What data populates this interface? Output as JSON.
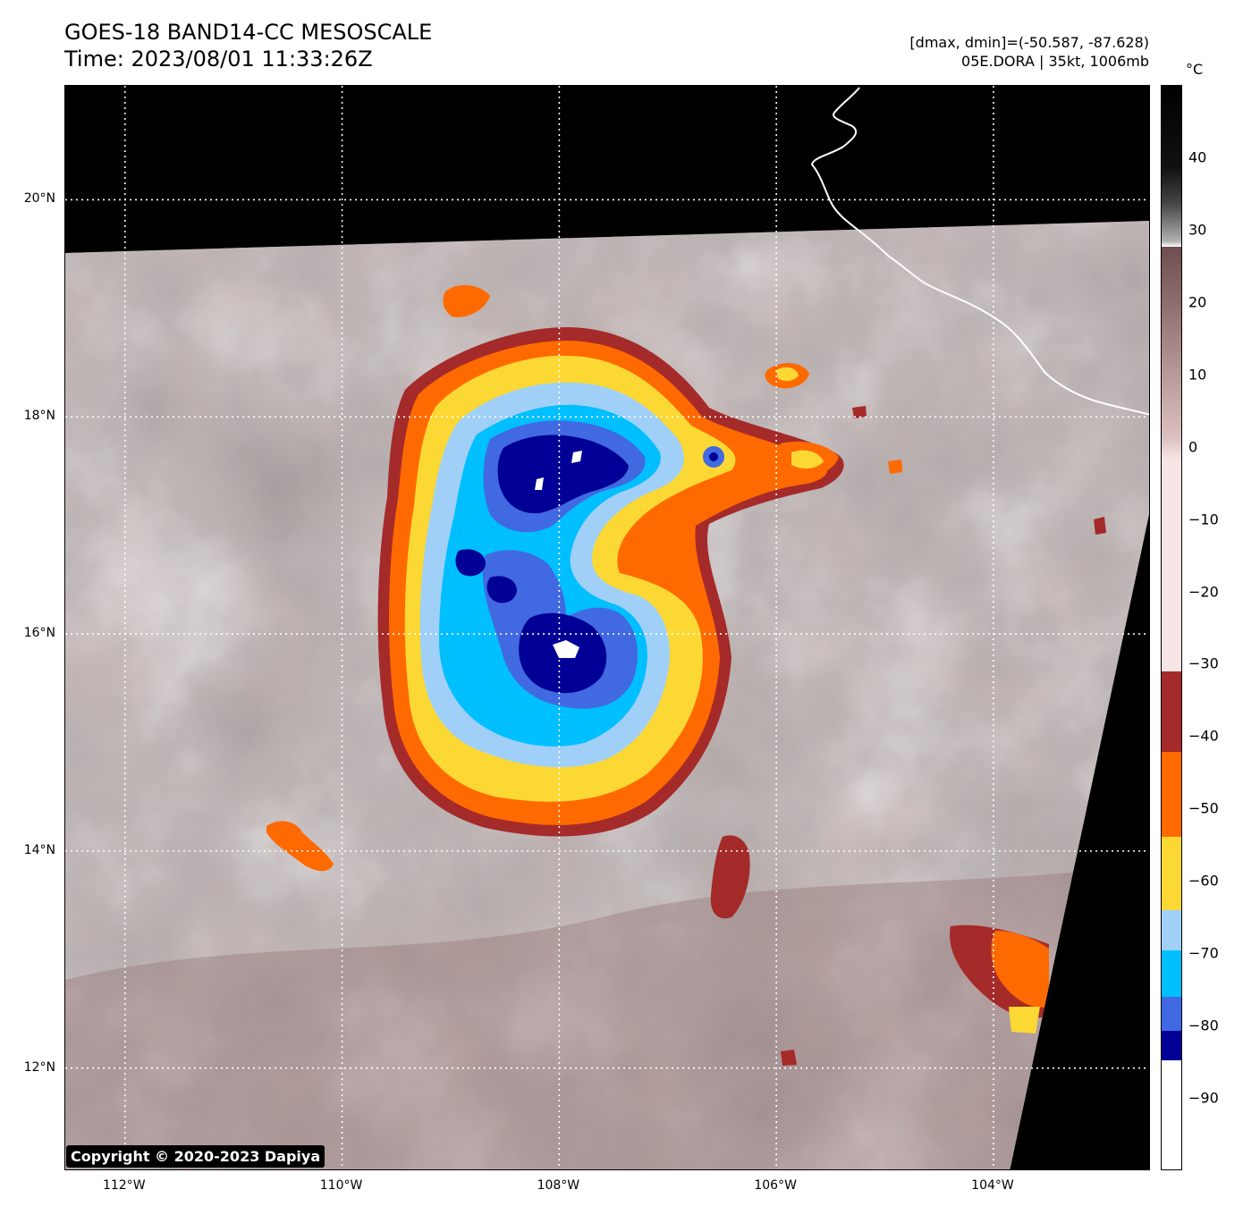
{
  "header": {
    "title_line1": "GOES-18 BAND14-CC MESOSCALE",
    "title_line2": "Time: 2023/08/01 11:33:26Z",
    "stats": "[dmax, dmin]=(-50.587, -87.628)",
    "storm": "05E.DORA | 35kt, 1006mb"
  },
  "map": {
    "lon_labels": [
      "112°W",
      "110°W",
      "108°W",
      "106°W",
      "104°W"
    ],
    "lat_labels": [
      "20°N",
      "18°N",
      "16°N",
      "14°N",
      "12°N"
    ],
    "lon_ticks_deg": [
      -112,
      -110,
      -108,
      -106,
      -104
    ],
    "lat_ticks_deg": [
      20,
      18,
      16,
      14,
      12
    ],
    "extent": {
      "lon_min": -112.55,
      "lon_max": -102.55,
      "lat_min": 11.05,
      "lat_max": 21.05
    },
    "storm_feature": "Tropical Storm Dora cold cloud tops (deep convection) near 16.5N 108W",
    "coastline": "Mexico west coast (white line) upper right"
  },
  "colorbar": {
    "unit": "°C",
    "labels": [
      "40",
      "30",
      "20",
      "10",
      "0",
      "−10",
      "−20",
      "−30",
      "−40",
      "−50",
      "−60",
      "−70",
      "−80",
      "−90"
    ],
    "label_values": [
      40,
      30,
      20,
      10,
      0,
      -10,
      -20,
      -30,
      -40,
      -50,
      -60,
      -70,
      -80,
      -90
    ],
    "range": [
      -100,
      50
    ],
    "colors": {
      "dark": "#000000",
      "mid_gray": "#808080",
      "white": "#ffffff",
      "warm_brown": "#7a5252",
      "pink": "#f0dcdc",
      "red": "#a52a2a",
      "orange": "#ff6a00",
      "yellow": "#fcd834",
      "light_blue": "#a0d0f8",
      "cyan": "#00bfff",
      "royal_blue": "#4169e1",
      "navy": "#000096",
      "coldest": "#ffffff"
    }
  },
  "copyright": "Copyright © 2020-2023 Dapiya"
}
